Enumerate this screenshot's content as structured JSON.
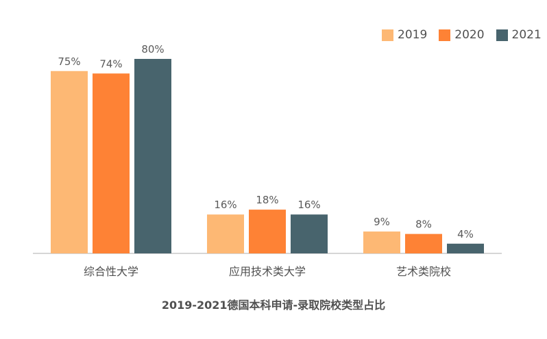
{
  "chart_data": {
    "type": "bar",
    "title": "2019-2021德国本科申请-录取院校类型占比",
    "categories": [
      "综合性大学",
      "应用技术类大学",
      "艺术类院校"
    ],
    "series": [
      {
        "name": "2019",
        "color": "#FDB874",
        "values": [
          75,
          16,
          9
        ],
        "labels": [
          "75%",
          "16%",
          "9%"
        ]
      },
      {
        "name": "2020",
        "color": "#FE8235",
        "values": [
          74,
          18,
          8
        ],
        "labels": [
          "74%",
          "18%",
          "8%"
        ]
      },
      {
        "name": "2021",
        "color": "#48646D",
        "values": [
          80,
          16,
          4
        ],
        "labels": [
          "80%",
          "16%",
          "4%"
        ]
      }
    ],
    "ylim": [
      0,
      100
    ],
    "unit": "%",
    "grid": false,
    "legend_position": "top-right"
  }
}
